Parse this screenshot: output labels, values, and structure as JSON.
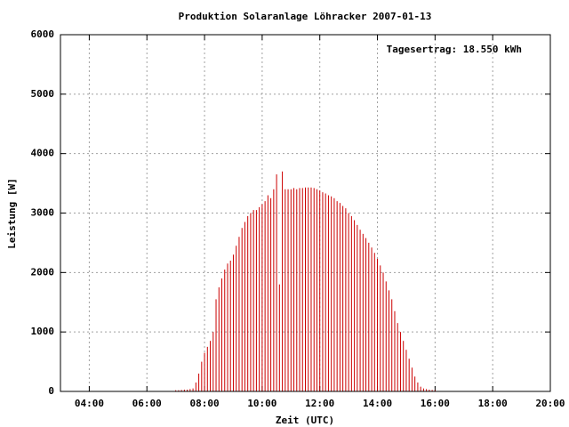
{
  "chart_data": {
    "type": "impulse",
    "title": "Produktion Solaranlage Löhracker 2007-01-13",
    "annotation": "Tagesertrag: 18.550 kWh",
    "x_label": "Zeit (UTC)",
    "y_label": "Leistung [W]",
    "color": "#cc0000",
    "grid": true,
    "xlim": [
      3,
      20
    ],
    "ylim": [
      0,
      6000
    ],
    "xticks": [
      {
        "value": 4,
        "label": "04:00"
      },
      {
        "value": 6,
        "label": "06:00"
      },
      {
        "value": 8,
        "label": "08:00"
      },
      {
        "value": 10,
        "label": "10:00"
      },
      {
        "value": 12,
        "label": "12:00"
      },
      {
        "value": 14,
        "label": "14:00"
      },
      {
        "value": 16,
        "label": "16:00"
      },
      {
        "value": 18,
        "label": "18:00"
      },
      {
        "value": 20,
        "label": "20:00"
      }
    ],
    "yticks": [
      0,
      1000,
      2000,
      3000,
      4000,
      5000,
      6000
    ],
    "x": [
      7.0,
      7.1,
      7.2,
      7.3,
      7.4,
      7.5,
      7.6,
      7.7,
      7.8,
      7.9,
      8.0,
      8.1,
      8.2,
      8.3,
      8.4,
      8.5,
      8.6,
      8.7,
      8.8,
      8.9,
      9.0,
      9.1,
      9.2,
      9.3,
      9.4,
      9.5,
      9.6,
      9.7,
      9.8,
      9.9,
      10.0,
      10.1,
      10.2,
      10.3,
      10.4,
      10.5,
      10.6,
      10.7,
      10.8,
      10.9,
      11.0,
      11.1,
      11.2,
      11.3,
      11.4,
      11.5,
      11.6,
      11.7,
      11.8,
      11.9,
      12.0,
      12.1,
      12.2,
      12.3,
      12.4,
      12.5,
      12.6,
      12.7,
      12.8,
      12.9,
      13.0,
      13.1,
      13.2,
      13.3,
      13.4,
      13.5,
      13.6,
      13.7,
      13.8,
      13.9,
      14.0,
      14.1,
      14.2,
      14.3,
      14.4,
      14.5,
      14.6,
      14.7,
      14.8,
      14.9,
      15.0,
      15.1,
      15.2,
      15.3,
      15.4,
      15.5,
      15.6,
      15.7,
      15.8,
      15.9,
      16.0
    ],
    "values": [
      20,
      20,
      25,
      30,
      30,
      40,
      50,
      150,
      300,
      500,
      650,
      750,
      850,
      1000,
      1550,
      1750,
      1900,
      2050,
      2150,
      2200,
      2300,
      2450,
      2600,
      2750,
      2850,
      2950,
      3000,
      3050,
      3050,
      3100,
      3150,
      3200,
      3300,
      3250,
      3400,
      3650,
      1800,
      3700,
      3400,
      3400,
      3400,
      3420,
      3400,
      3420,
      3420,
      3430,
      3430,
      3430,
      3420,
      3400,
      3380,
      3350,
      3330,
      3300,
      3280,
      3250,
      3200,
      3170,
      3120,
      3080,
      3000,
      2950,
      2880,
      2800,
      2720,
      2650,
      2580,
      2500,
      2420,
      2330,
      2230,
      2120,
      2000,
      1850,
      1700,
      1550,
      1350,
      1150,
      1000,
      850,
      700,
      550,
      400,
      250,
      150,
      80,
      50,
      40,
      30,
      25,
      20
    ]
  }
}
